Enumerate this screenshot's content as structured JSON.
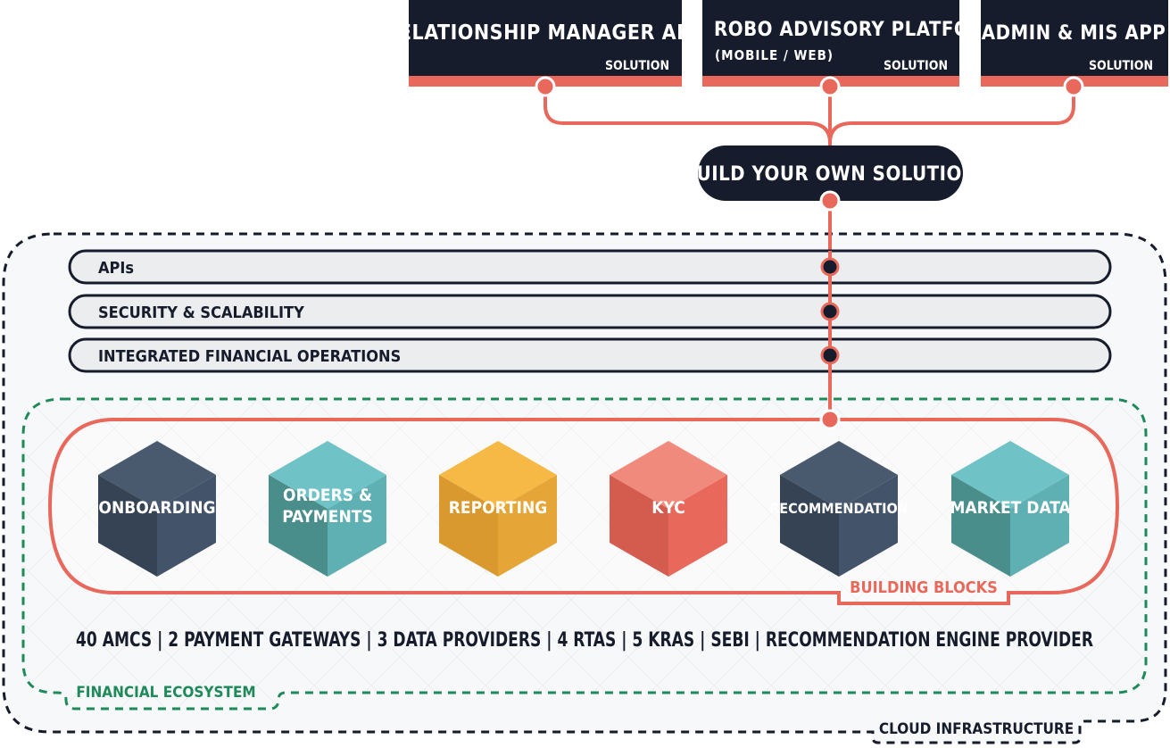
{
  "solutions": [
    {
      "title": "RELATIONSHIP MANAGER APP",
      "subtitle": "",
      "tag": "SOLUTION"
    },
    {
      "title": "ROBO ADVISORY PLATFORM",
      "subtitle": "(MOBILE / WEB)",
      "tag": "SOLUTION"
    },
    {
      "title": "ADMIN & MIS APP",
      "subtitle": "",
      "tag": "SOLUTION"
    }
  ],
  "hub": {
    "label": "BUILD YOUR OWN SOLUTION"
  },
  "layers": [
    {
      "label": "APIs"
    },
    {
      "label": "SECURITY & SCALABILITY"
    },
    {
      "label": "INTEGRATED FINANCIAL OPERATIONS"
    }
  ],
  "blocks": [
    {
      "line1": "ONBOARDING",
      "line2": "",
      "top": "#4a5a6e",
      "left": "#354354",
      "right": "#43546a"
    },
    {
      "line1": "ORDERS &",
      "line2": "PAYMENTS",
      "top": "#6fc3c6",
      "left": "#4a8e8c",
      "right": "#5fb0b2"
    },
    {
      "line1": "REPORTING",
      "line2": "",
      "top": "#f6b945",
      "left": "#d9992e",
      "right": "#e5a637"
    },
    {
      "line1": "KYC",
      "line2": "",
      "top": "#f08a7c",
      "left": "#d45c4f",
      "right": "#e8695c"
    },
    {
      "line1": "RECOMMENDATION",
      "line2": "",
      "top": "#4a5a6e",
      "left": "#354354",
      "right": "#43546a"
    },
    {
      "line1": "MARKET DATA",
      "line2": "",
      "top": "#6fc3c6",
      "left": "#4a8e8c",
      "right": "#5fb0b2"
    }
  ],
  "building_blocks_label": "BUILDING BLOCKS",
  "ecosystem_items": [
    "40 AMCS",
    "2 PAYMENT GATEWAYS",
    "3 DATA PROVIDERS",
    "4 RTAS",
    "5 KRAS",
    "SEBI",
    "RECOMMENDATION ENGINE PROVIDER"
  ],
  "ecosystem_label": "FINANCIAL ECOSYSTEM",
  "cloud_label": "CLOUD INFRASTRUCTURE",
  "colors": {
    "navy": "#161c2c",
    "coral": "#e8695c",
    "green": "#1e8a5a",
    "bar_fill": "#ebedee"
  }
}
